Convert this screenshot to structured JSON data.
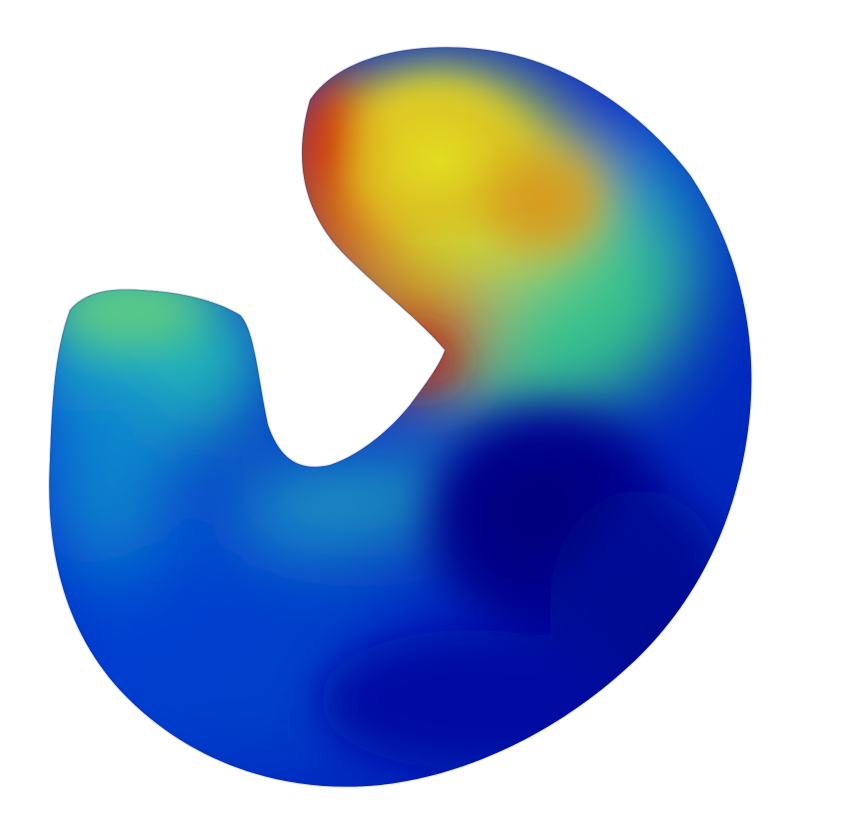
{
  "figure": {
    "kind": "3d-surface-heatmap-render",
    "colormap": "jet",
    "background": "#ffffff",
    "palette": {
      "dark_blue": "#0000a8",
      "blue": "#0030e0",
      "mid_blue": "#1070e0",
      "cyan": "#20b8d8",
      "teal": "#30d8b0",
      "green_yellow": "#b8f040",
      "yellow": "#f4f020",
      "orange": "#f08018",
      "red": "#c81808"
    }
  }
}
